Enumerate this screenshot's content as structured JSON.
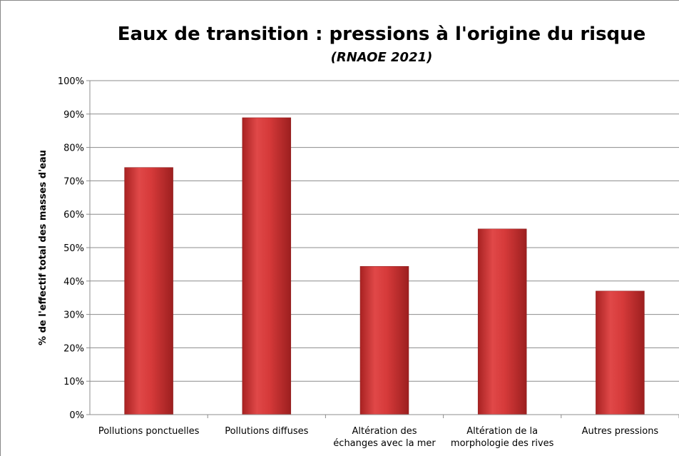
{
  "chart_data": {
    "type": "bar",
    "title": "Eaux de transition : pressions à l'origine du risque",
    "subtitle": "(RNAOE 2021)",
    "y_label": "% de l'effectif total des masses d'eau",
    "categories": [
      "Pollutions ponctuelles",
      "Pollutions diffuses",
      "Altération des\néchanges avec la mer",
      "Altération de la\nmorphologie des rives",
      "Autres pressions"
    ],
    "values": [
      74,
      88.9,
      44.4,
      55.6,
      37
    ],
    "color": "#d63a3a",
    "ylim": [
      0,
      100
    ],
    "yticks": [
      {
        "value": 0,
        "label": "0%"
      },
      {
        "value": 10,
        "label": "10%"
      },
      {
        "value": 20,
        "label": "20%"
      },
      {
        "value": 30,
        "label": "30%"
      },
      {
        "value": 40,
        "label": "40%"
      },
      {
        "value": 50,
        "label": "50%"
      },
      {
        "value": 60,
        "label": "60%"
      },
      {
        "value": 70,
        "label": "70%"
      },
      {
        "value": 80,
        "label": "80%"
      },
      {
        "value": 90,
        "label": "90%"
      },
      {
        "value": 100,
        "label": "100%"
      }
    ],
    "grid": true
  }
}
